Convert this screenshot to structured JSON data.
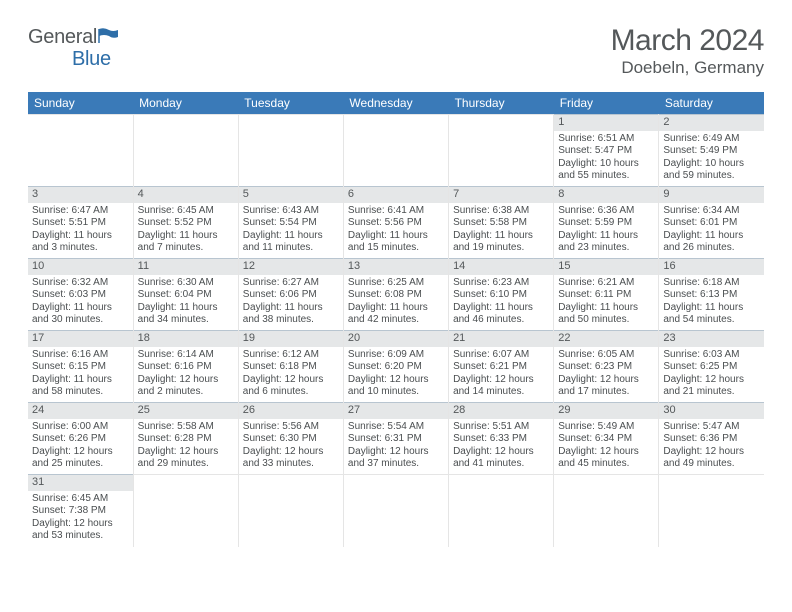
{
  "logo": {
    "word1": "General",
    "word2": "Blue"
  },
  "title": "March 2024",
  "location": "Doebeln, Germany",
  "colors": {
    "header_bg": "#3a7ab8",
    "header_text": "#ffffff",
    "text": "#54585a",
    "daynum_bg": "#e5e7e8",
    "rule": "#b8c5d0"
  },
  "days_of_week": [
    "Sunday",
    "Monday",
    "Tuesday",
    "Wednesday",
    "Thursday",
    "Friday",
    "Saturday"
  ],
  "calendar": {
    "first_weekday_index": 5,
    "num_days": 31,
    "rows": 6,
    "cols": 7
  },
  "cells": {
    "1": {
      "sunrise": "6:51 AM",
      "sunset": "5:47 PM",
      "daylight": "10 hours and 55 minutes."
    },
    "2": {
      "sunrise": "6:49 AM",
      "sunset": "5:49 PM",
      "daylight": "10 hours and 59 minutes."
    },
    "3": {
      "sunrise": "6:47 AM",
      "sunset": "5:51 PM",
      "daylight": "11 hours and 3 minutes."
    },
    "4": {
      "sunrise": "6:45 AM",
      "sunset": "5:52 PM",
      "daylight": "11 hours and 7 minutes."
    },
    "5": {
      "sunrise": "6:43 AM",
      "sunset": "5:54 PM",
      "daylight": "11 hours and 11 minutes."
    },
    "6": {
      "sunrise": "6:41 AM",
      "sunset": "5:56 PM",
      "daylight": "11 hours and 15 minutes."
    },
    "7": {
      "sunrise": "6:38 AM",
      "sunset": "5:58 PM",
      "daylight": "11 hours and 19 minutes."
    },
    "8": {
      "sunrise": "6:36 AM",
      "sunset": "5:59 PM",
      "daylight": "11 hours and 23 minutes."
    },
    "9": {
      "sunrise": "6:34 AM",
      "sunset": "6:01 PM",
      "daylight": "11 hours and 26 minutes."
    },
    "10": {
      "sunrise": "6:32 AM",
      "sunset": "6:03 PM",
      "daylight": "11 hours and 30 minutes."
    },
    "11": {
      "sunrise": "6:30 AM",
      "sunset": "6:04 PM",
      "daylight": "11 hours and 34 minutes."
    },
    "12": {
      "sunrise": "6:27 AM",
      "sunset": "6:06 PM",
      "daylight": "11 hours and 38 minutes."
    },
    "13": {
      "sunrise": "6:25 AM",
      "sunset": "6:08 PM",
      "daylight": "11 hours and 42 minutes."
    },
    "14": {
      "sunrise": "6:23 AM",
      "sunset": "6:10 PM",
      "daylight": "11 hours and 46 minutes."
    },
    "15": {
      "sunrise": "6:21 AM",
      "sunset": "6:11 PM",
      "daylight": "11 hours and 50 minutes."
    },
    "16": {
      "sunrise": "6:18 AM",
      "sunset": "6:13 PM",
      "daylight": "11 hours and 54 minutes."
    },
    "17": {
      "sunrise": "6:16 AM",
      "sunset": "6:15 PM",
      "daylight": "11 hours and 58 minutes."
    },
    "18": {
      "sunrise": "6:14 AM",
      "sunset": "6:16 PM",
      "daylight": "12 hours and 2 minutes."
    },
    "19": {
      "sunrise": "6:12 AM",
      "sunset": "6:18 PM",
      "daylight": "12 hours and 6 minutes."
    },
    "20": {
      "sunrise": "6:09 AM",
      "sunset": "6:20 PM",
      "daylight": "12 hours and 10 minutes."
    },
    "21": {
      "sunrise": "6:07 AM",
      "sunset": "6:21 PM",
      "daylight": "12 hours and 14 minutes."
    },
    "22": {
      "sunrise": "6:05 AM",
      "sunset": "6:23 PM",
      "daylight": "12 hours and 17 minutes."
    },
    "23": {
      "sunrise": "6:03 AM",
      "sunset": "6:25 PM",
      "daylight": "12 hours and 21 minutes."
    },
    "24": {
      "sunrise": "6:00 AM",
      "sunset": "6:26 PM",
      "daylight": "12 hours and 25 minutes."
    },
    "25": {
      "sunrise": "5:58 AM",
      "sunset": "6:28 PM",
      "daylight": "12 hours and 29 minutes."
    },
    "26": {
      "sunrise": "5:56 AM",
      "sunset": "6:30 PM",
      "daylight": "12 hours and 33 minutes."
    },
    "27": {
      "sunrise": "5:54 AM",
      "sunset": "6:31 PM",
      "daylight": "12 hours and 37 minutes."
    },
    "28": {
      "sunrise": "5:51 AM",
      "sunset": "6:33 PM",
      "daylight": "12 hours and 41 minutes."
    },
    "29": {
      "sunrise": "5:49 AM",
      "sunset": "6:34 PM",
      "daylight": "12 hours and 45 minutes."
    },
    "30": {
      "sunrise": "5:47 AM",
      "sunset": "6:36 PM",
      "daylight": "12 hours and 49 minutes."
    },
    "31": {
      "sunrise": "6:45 AM",
      "sunset": "7:38 PM",
      "daylight": "12 hours and 53 minutes."
    }
  },
  "labels": {
    "sunrise": "Sunrise: ",
    "sunset": "Sunset: ",
    "daylight": "Daylight: "
  }
}
